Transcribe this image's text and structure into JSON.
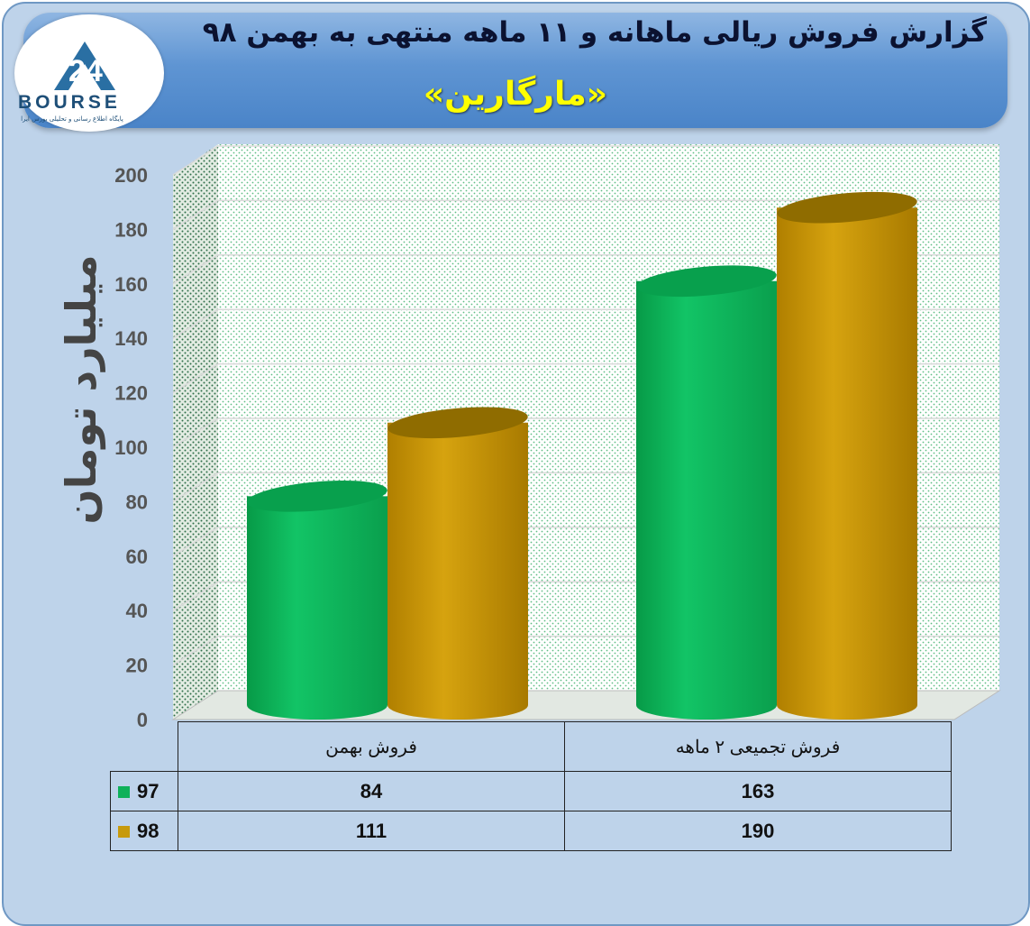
{
  "header": {
    "title": "گزارش فروش ریالی ماهانه و ۱۱ ماهه منتهی به بهمن ۹۸",
    "subtitle": "«مارگارین»",
    "logo_text": "BOURSE",
    "logo_tagline": "پایگاه اطلاع رسانی و تحلیلی بورس ایرا"
  },
  "colors": {
    "series_97": "#0fb15a",
    "series_98": "#c79a0c",
    "banner": "#5f95d3",
    "title_accent": "#ffff00"
  },
  "chart_data": {
    "type": "bar",
    "categories": [
      "فروش بهمن",
      "فروش تجمیعی ۲ ماهه"
    ],
    "series": [
      {
        "name": "97",
        "values": [
          84,
          163
        ]
      },
      {
        "name": "98",
        "values": [
          111,
          190
        ]
      }
    ],
    "ylabel": "میلیارد تومان",
    "ylim": [
      0,
      200
    ],
    "yticks": [
      0,
      20,
      40,
      60,
      80,
      100,
      120,
      140,
      160,
      180,
      200
    ],
    "grid": true,
    "legend": "data-table"
  },
  "table": {
    "headers": [
      "فروش بهمن",
      "فروش تجمیعی ۲ ماهه"
    ],
    "rows": [
      {
        "label": "97",
        "values": [
          "84",
          "163"
        ]
      },
      {
        "label": "98",
        "values": [
          "111",
          "190"
        ]
      }
    ]
  }
}
